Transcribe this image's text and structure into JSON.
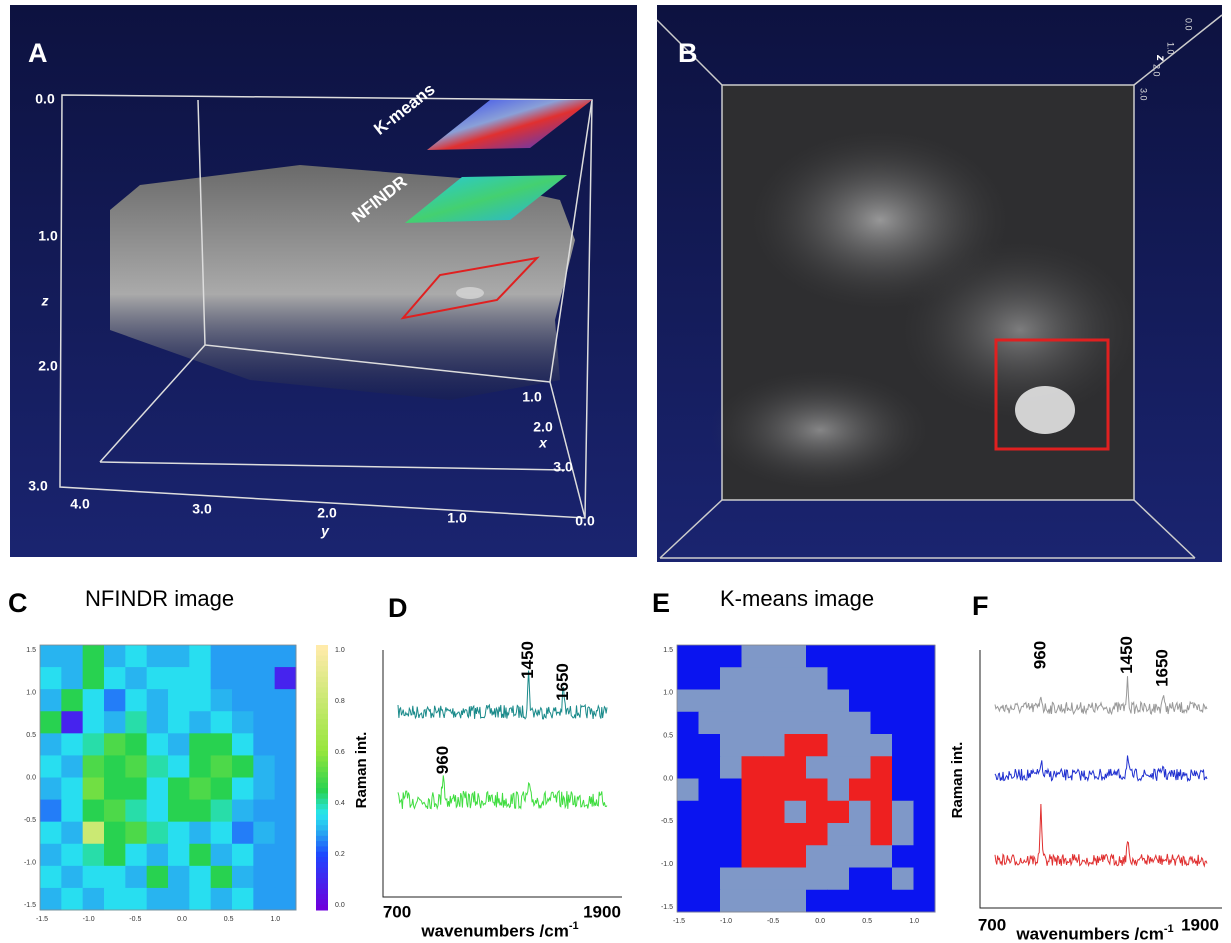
{
  "panels": {
    "a": {
      "label": "A",
      "slices": [
        "K-means",
        "NFINDR"
      ],
      "z_ticks": [
        "0.0",
        "1.0",
        "2.0",
        "3.0"
      ],
      "z_label": "z",
      "y_ticks": [
        "4.0",
        "3.0",
        "2.0",
        "1.0",
        "0.0"
      ],
      "y_label": "y",
      "x_ticks": [
        "1.0",
        "2.0",
        "3.0"
      ],
      "x_label": "x"
    },
    "b": {
      "label": "B",
      "z_label": "z",
      "z_ticks": [
        "0.0",
        "1.0",
        "2.0",
        "3.0"
      ]
    },
    "c": {
      "label": "C",
      "title": "NFINDR image",
      "x_ticks": [
        "-1.5",
        "-1.0",
        "-0.5",
        "0.0",
        "0.5",
        "1.0"
      ],
      "y_ticks": [
        "1.5",
        "1.0",
        "0.5",
        "0.0",
        "-0.5",
        "-1.0",
        "-1.5"
      ],
      "colorbar_ticks": [
        "1.0",
        "0.8",
        "0.6",
        "0.4",
        "0.2",
        "0.0"
      ],
      "grid": [
        [
          0.3,
          0.3,
          0.45,
          0.3,
          0.35,
          0.3,
          0.3,
          0.35,
          0.28,
          0.28,
          0.28,
          0.28
        ],
        [
          0.35,
          0.3,
          0.45,
          0.35,
          0.3,
          0.35,
          0.35,
          0.35,
          0.28,
          0.28,
          0.28,
          0.1
        ],
        [
          0.3,
          0.45,
          0.35,
          0.25,
          0.35,
          0.3,
          0.35,
          0.35,
          0.3,
          0.28,
          0.28,
          0.28
        ],
        [
          0.45,
          0.1,
          0.35,
          0.3,
          0.4,
          0.3,
          0.35,
          0.3,
          0.35,
          0.3,
          0.28,
          0.28
        ],
        [
          0.3,
          0.35,
          0.4,
          0.5,
          0.45,
          0.35,
          0.3,
          0.45,
          0.45,
          0.35,
          0.28,
          0.28
        ],
        [
          0.35,
          0.3,
          0.5,
          0.45,
          0.5,
          0.4,
          0.35,
          0.45,
          0.5,
          0.45,
          0.3,
          0.28
        ],
        [
          0.3,
          0.35,
          0.55,
          0.45,
          0.45,
          0.35,
          0.45,
          0.5,
          0.45,
          0.35,
          0.3,
          0.28
        ],
        [
          0.25,
          0.35,
          0.45,
          0.5,
          0.4,
          0.35,
          0.45,
          0.45,
          0.4,
          0.3,
          0.28,
          0.28
        ],
        [
          0.35,
          0.3,
          0.8,
          0.45,
          0.5,
          0.4,
          0.35,
          0.3,
          0.35,
          0.25,
          0.3,
          0.28
        ],
        [
          0.3,
          0.35,
          0.4,
          0.45,
          0.35,
          0.3,
          0.35,
          0.45,
          0.3,
          0.35,
          0.28,
          0.28
        ],
        [
          0.35,
          0.3,
          0.35,
          0.35,
          0.3,
          0.45,
          0.3,
          0.35,
          0.45,
          0.3,
          0.28,
          0.28
        ],
        [
          0.3,
          0.35,
          0.3,
          0.35,
          0.35,
          0.3,
          0.3,
          0.35,
          0.3,
          0.35,
          0.28,
          0.28
        ]
      ]
    },
    "d": {
      "label": "D",
      "peaks": [
        "1450",
        "1650",
        "960"
      ],
      "y_label": "Raman int.",
      "x_ticks": [
        "700",
        "1900"
      ],
      "x_label": "wavenumbers /cm",
      "x_label_sup": "-1"
    },
    "e": {
      "label": "E",
      "title": "K-means image",
      "x_ticks": [
        "-1.5",
        "-1.0",
        "-0.5",
        "0.0",
        "0.5",
        "1.0"
      ],
      "y_ticks": [
        "1.5",
        "1.0",
        "0.5",
        "0.0",
        "-0.5",
        "-1.0",
        "-1.5"
      ],
      "grid": [
        [
          0,
          0,
          0,
          1,
          1,
          1,
          0,
          0,
          0,
          0,
          0,
          0
        ],
        [
          0,
          0,
          1,
          1,
          1,
          1,
          1,
          0,
          0,
          0,
          0,
          0
        ],
        [
          1,
          1,
          1,
          1,
          1,
          1,
          1,
          1,
          0,
          0,
          0,
          0
        ],
        [
          0,
          1,
          1,
          1,
          1,
          1,
          1,
          1,
          1,
          0,
          0,
          0
        ],
        [
          0,
          0,
          1,
          1,
          1,
          2,
          2,
          1,
          1,
          1,
          0,
          0
        ],
        [
          0,
          0,
          1,
          2,
          2,
          2,
          1,
          1,
          1,
          2,
          0,
          0
        ],
        [
          1,
          0,
          0,
          2,
          2,
          2,
          2,
          1,
          2,
          2,
          0,
          0
        ],
        [
          0,
          0,
          0,
          2,
          2,
          1,
          2,
          2,
          1,
          2,
          1,
          0
        ],
        [
          0,
          0,
          0,
          2,
          2,
          2,
          2,
          1,
          1,
          2,
          1,
          0
        ],
        [
          0,
          0,
          0,
          2,
          2,
          2,
          1,
          1,
          1,
          1,
          0,
          0
        ],
        [
          0,
          0,
          1,
          1,
          1,
          1,
          1,
          1,
          0,
          0,
          1,
          0
        ],
        [
          0,
          0,
          1,
          1,
          1,
          1,
          0,
          0,
          0,
          0,
          0,
          0
        ]
      ]
    },
    "f": {
      "label": "F",
      "peaks": [
        "960",
        "1450",
        "1650"
      ],
      "y_label": "Raman int.",
      "x_ticks": [
        "700",
        "1900"
      ],
      "x_label": "wavenumbers /cm",
      "x_label_sup": "-1"
    }
  }
}
